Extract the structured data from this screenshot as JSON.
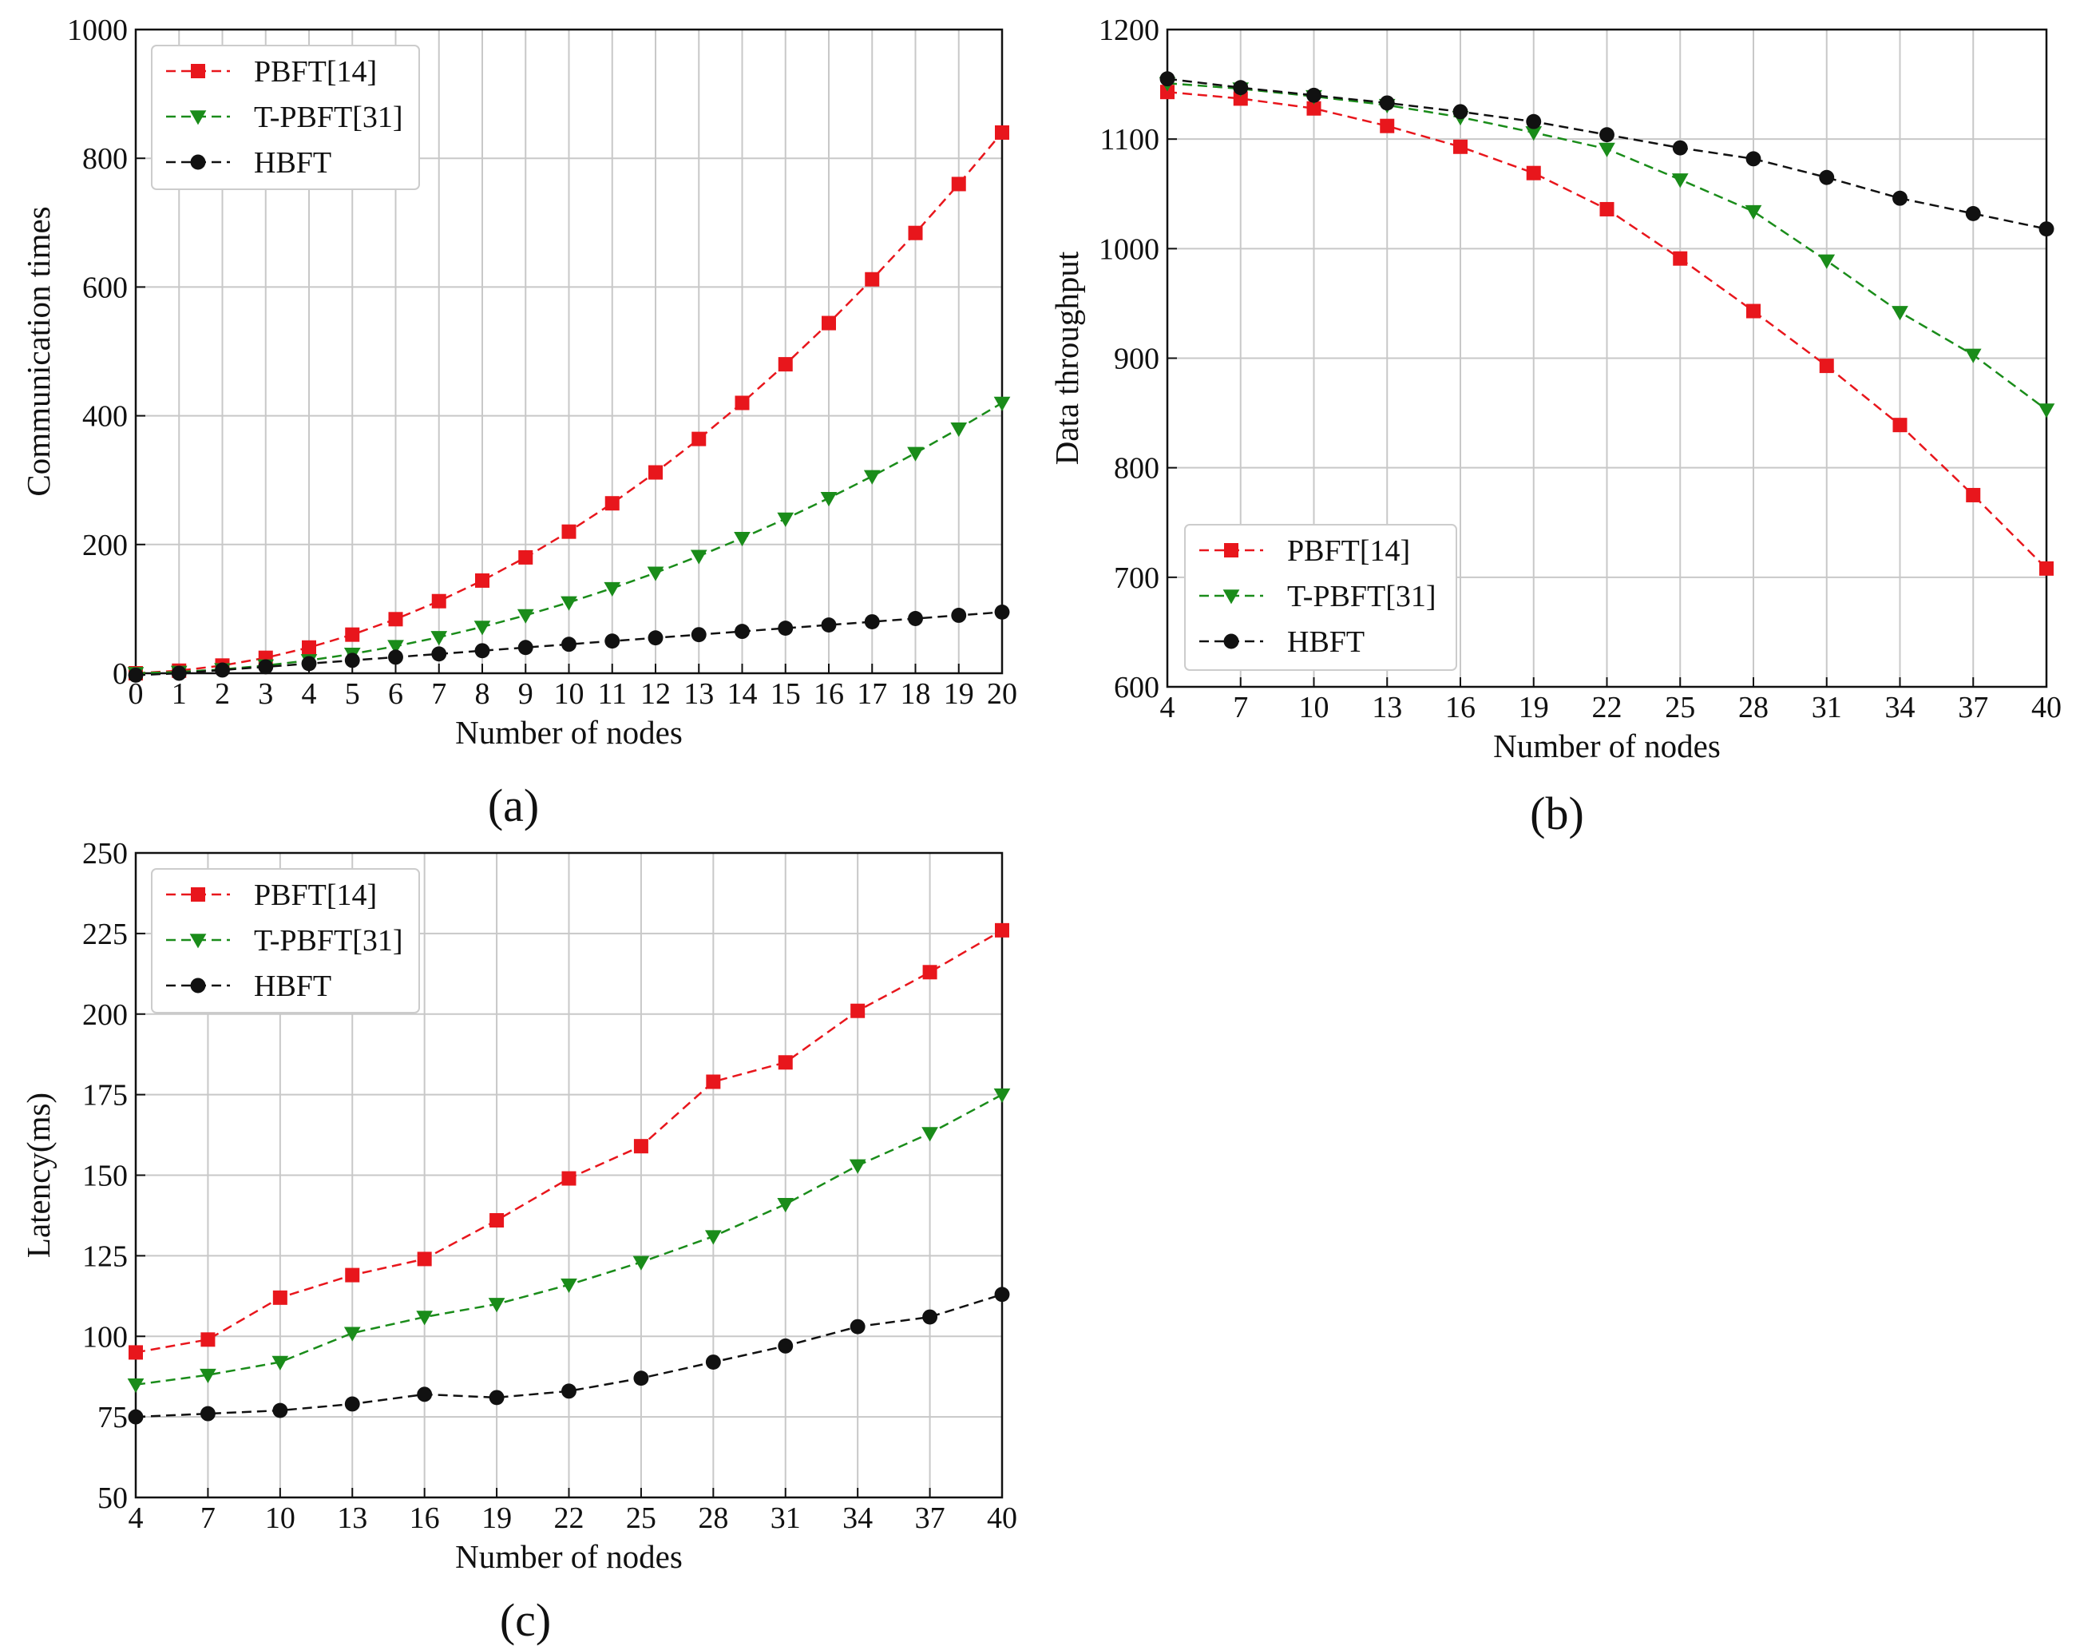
{
  "colors": {
    "pbft": "#e8161c",
    "tpbft": "#1a8c1a",
    "hbft": "#111111",
    "grid": "#c8c8c8"
  },
  "legend_marker_icons": [
    "square-marker-icon",
    "triangle-down-marker-icon",
    "circle-marker-icon"
  ],
  "chart_data": [
    {
      "id": "a",
      "type": "line",
      "caption": "(a)",
      "title": "",
      "xlabel": "Number of nodes",
      "ylabel": "Communication times",
      "x": [
        0,
        1,
        2,
        3,
        4,
        5,
        6,
        7,
        8,
        9,
        10,
        11,
        12,
        13,
        14,
        15,
        16,
        17,
        18,
        19,
        20
      ],
      "xticks": [
        "0",
        "1",
        "2",
        "3",
        "4",
        "5",
        "6",
        "7",
        "8",
        "9",
        "10",
        "11",
        "12",
        "13",
        "14",
        "15",
        "16",
        "17",
        "18",
        "19",
        "20"
      ],
      "xlim": [
        0,
        20
      ],
      "ylim": [
        0,
        1000
      ],
      "yticks": [
        "0",
        "200",
        "400",
        "600",
        "800",
        "1000"
      ],
      "grid": true,
      "legend_position": "top-left",
      "series": [
        {
          "name": "PBFT[14]",
          "key": "pbft",
          "marker": "square",
          "values": [
            0,
            4,
            12,
            24,
            40,
            60,
            84,
            112,
            144,
            180,
            220,
            264,
            312,
            364,
            420,
            480,
            544,
            612,
            684,
            760,
            840
          ]
        },
        {
          "name": "T-PBFT[31]",
          "key": "tpbft",
          "marker": "triangle-down",
          "values": [
            0,
            2,
            6,
            12,
            20,
            30,
            42,
            56,
            72,
            90,
            110,
            132,
            156,
            182,
            210,
            240,
            272,
            306,
            342,
            380,
            420
          ]
        },
        {
          "name": "HBFT",
          "key": "hbft",
          "marker": "circle",
          "values": [
            -3,
            0,
            5,
            10,
            15,
            20,
            25,
            30,
            35,
            40,
            45,
            50,
            55,
            60,
            65,
            70,
            75,
            80,
            85,
            90,
            95
          ]
        }
      ]
    },
    {
      "id": "b",
      "type": "line",
      "caption": "(b)",
      "title": "",
      "xlabel": "Number of nodes",
      "ylabel": "Data throughput",
      "x": [
        4,
        7,
        10,
        13,
        16,
        19,
        22,
        25,
        28,
        31,
        34,
        37,
        40
      ],
      "xticks": [
        "4",
        "7",
        "10",
        "13",
        "16",
        "19",
        "22",
        "25",
        "28",
        "31",
        "34",
        "37",
        "40"
      ],
      "xlim": [
        4,
        40
      ],
      "ylim": [
        600,
        1200
      ],
      "yticks": [
        "600",
        "700",
        "800",
        "900",
        "1000",
        "1100",
        "1200"
      ],
      "grid": true,
      "legend_position": "bottom-left",
      "series": [
        {
          "name": "PBFT[14]",
          "key": "pbft",
          "marker": "square",
          "values": [
            1143,
            1137,
            1128,
            1112,
            1093,
            1069,
            1036,
            991,
            943,
            893,
            839,
            775,
            708
          ]
        },
        {
          "name": "T-PBFT[31]",
          "key": "tpbft",
          "marker": "triangle-down",
          "values": [
            1151,
            1146,
            1139,
            1131,
            1120,
            1106,
            1091,
            1063,
            1034,
            989,
            942,
            903,
            853
          ]
        },
        {
          "name": "HBFT",
          "key": "hbft",
          "marker": "circle",
          "values": [
            1155,
            1147,
            1140,
            1133,
            1125,
            1116,
            1104,
            1092,
            1082,
            1065,
            1046,
            1032,
            1018
          ]
        }
      ]
    },
    {
      "id": "c",
      "type": "line",
      "caption": "(c)",
      "title": "",
      "xlabel": "Number of nodes",
      "ylabel": "Latency(ms)",
      "x": [
        4,
        7,
        10,
        13,
        16,
        19,
        22,
        25,
        28,
        31,
        34,
        37,
        40
      ],
      "xticks": [
        "4",
        "7",
        "10",
        "13",
        "16",
        "19",
        "22",
        "25",
        "28",
        "31",
        "34",
        "37",
        "40"
      ],
      "xlim": [
        4,
        40
      ],
      "ylim": [
        50,
        250
      ],
      "yticks": [
        "50",
        "75",
        "100",
        "125",
        "150",
        "175",
        "200",
        "225",
        "250"
      ],
      "grid": true,
      "legend_position": "top-left",
      "series": [
        {
          "name": "PBFT[14]",
          "key": "pbft",
          "marker": "square",
          "values": [
            95,
            99,
            112,
            119,
            124,
            136,
            149,
            159,
            179,
            185,
            201,
            213,
            226
          ]
        },
        {
          "name": "T-PBFT[31]",
          "key": "tpbft",
          "marker": "triangle-down",
          "values": [
            85,
            88,
            92,
            101,
            106,
            110,
            116,
            123,
            131,
            141,
            153,
            163,
            175
          ]
        },
        {
          "name": "HBFT",
          "key": "hbft",
          "marker": "circle",
          "values": [
            75,
            76,
            77,
            79,
            82,
            81,
            83,
            87,
            92,
            97,
            103,
            106,
            113
          ]
        }
      ]
    }
  ]
}
